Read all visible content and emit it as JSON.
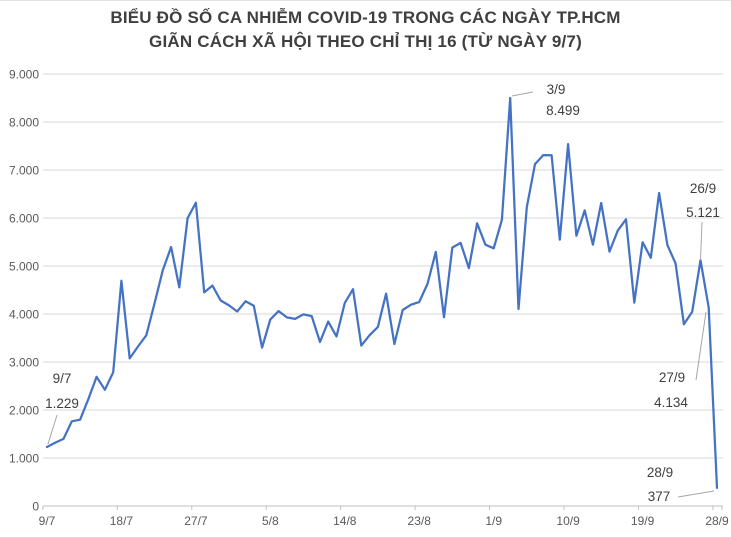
{
  "title": {
    "line1": "BIỂU ĐỒ SỐ CA NHIỄM COVID-19 TRONG CÁC NGÀY TP.HCM",
    "line2": "GIÃN CÁCH XÃ HỘI THEO CHỈ THỊ 16 (TỪ NGÀY 9/7)"
  },
  "colors": {
    "series_line": "#4472C4",
    "gridline": "#d9d9d9",
    "axis_line": "#bfbfbf",
    "axis_label": "#595959",
    "annotation_text": "#3f3f3f",
    "leader_line": "#a6a6a6"
  },
  "chart_data": {
    "type": "line",
    "title": "BIỂU ĐỒ SỐ CA NHIỄM COVID-19 TRONG CÁC NGÀY TP.HCM GIÃN CÁCH XÃ HỘI THEO CHỈ THỊ 16 (TỪ NGÀY 9/7)",
    "xlabel": "",
    "ylabel": "",
    "ylim": [
      0,
      9000
    ],
    "grid": true,
    "legend": false,
    "y_tick_labels": [
      "0",
      "1.000",
      "2.000",
      "3.000",
      "4.000",
      "5.000",
      "6.000",
      "7.000",
      "8.000",
      "9.000"
    ],
    "x_tick_labels": [
      "9/7",
      "18/7",
      "27/7",
      "5/8",
      "14/8",
      "23/8",
      "1/9",
      "10/9",
      "19/9",
      "28/9"
    ],
    "x": [
      "9/7",
      "10/7",
      "11/7",
      "12/7",
      "13/7",
      "14/7",
      "15/7",
      "16/7",
      "17/7",
      "18/7",
      "19/7",
      "20/7",
      "21/7",
      "22/7",
      "23/7",
      "24/7",
      "25/7",
      "26/7",
      "27/7",
      "28/7",
      "29/7",
      "30/7",
      "31/7",
      "1/8",
      "2/8",
      "3/8",
      "4/8",
      "5/8",
      "6/8",
      "7/8",
      "8/8",
      "9/8",
      "10/8",
      "11/8",
      "12/8",
      "13/8",
      "14/8",
      "15/8",
      "16/8",
      "17/8",
      "18/8",
      "19/8",
      "20/8",
      "21/8",
      "22/8",
      "23/8",
      "24/8",
      "25/8",
      "26/8",
      "27/8",
      "28/8",
      "29/8",
      "30/8",
      "31/8",
      "1/9",
      "2/9",
      "3/9",
      "4/9",
      "5/9",
      "6/9",
      "7/9",
      "8/9",
      "9/9",
      "10/9",
      "11/9",
      "12/9",
      "13/9",
      "14/9",
      "15/9",
      "16/9",
      "17/9",
      "18/9",
      "19/9",
      "20/9",
      "21/9",
      "22/9",
      "23/9",
      "24/9",
      "25/9",
      "26/9",
      "27/9",
      "28/9"
    ],
    "series": [
      {
        "name": "Số ca nhiễm COVID-19 TP.HCM",
        "color": "#4472C4",
        "values": [
          1229,
          1320,
          1397,
          1764,
          1797,
          2229,
          2691,
          2420,
          2786,
          4692,
          3074,
          3322,
          3556,
          4218,
          4913,
          5396,
          4555,
          5997,
          6318,
          4449,
          4592,
          4282,
          4180,
          4052,
          4264,
          4171,
          3300,
          3886,
          4060,
          3930,
          3898,
          3991,
          3956,
          3416,
          3841,
          3531,
          4231,
          4516,
          3341,
          3559,
          3731,
          4425,
          3375,
          4084,
          4193,
          4251,
          4627,
          5294,
          3934,
          5383,
          5481,
          4957,
          5889,
          5444,
          5368,
          5963,
          8499,
          4104,
          6226,
          7122,
          7310,
          7308,
          5549,
          7539,
          5629,
          6158,
          5446,
          6312,
          5301,
          5735,
          5972,
          4237,
          5496,
          5171,
          6521,
          5435,
          5052,
          3786,
          4046,
          5121,
          4134,
          377
        ]
      }
    ],
    "annotations": [
      {
        "date": "9/7",
        "value_label": "1.229",
        "day_index": 0
      },
      {
        "date": "3/9",
        "value_label": "8.499",
        "day_index": 56
      },
      {
        "date": "26/9",
        "value_label": "5.121",
        "day_index": 79
      },
      {
        "date": "27/9",
        "value_label": "4.134",
        "day_index": 80
      },
      {
        "date": "28/9",
        "value_label": "377",
        "day_index": 81
      }
    ]
  }
}
